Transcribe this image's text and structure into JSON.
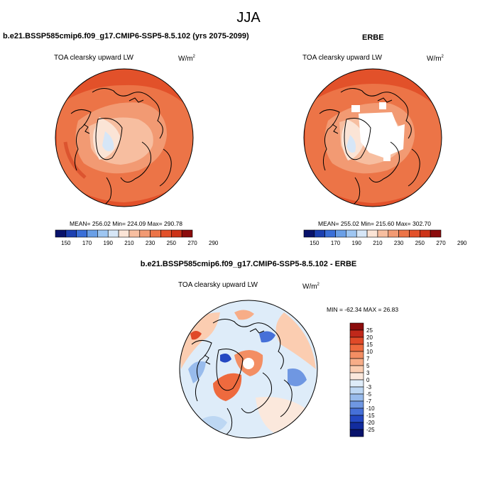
{
  "figure": {
    "title": "JJA"
  },
  "panels": [
    {
      "case_title": "b.e21.BSSP585cmip6.f09_g17.CMIP6-SSP5-8.5.102 (yrs 2075-2099)",
      "variable": "TOA clearsky upward LW",
      "units": "W/m",
      "units_exp": "2",
      "stats": "MEAN= 256.02  Min= 224.09  Max= 290.78"
    },
    {
      "case_title": "ERBE",
      "variable": "TOA clearsky upward LW",
      "units": "W/m",
      "units_exp": "2",
      "stats": "MEAN= 255.02  Min= 215.60  Max= 302.70"
    },
    {
      "case_title": "b.e21.BSSP585cmip6.f09_g17.CMIP6-SSP5-8.5.102 - ERBE",
      "variable": "TOA clearsky upward LW",
      "units": "W/m",
      "units_exp": "2",
      "stats": "MIN = -62.34 MAX =  26.83"
    }
  ],
  "chart_data": [
    {
      "type": "heatmap",
      "projection": "north-polar-stereographic",
      "title": "TOA clearsky upward LW",
      "subtitle": "b.e21.BSSP585cmip6.f09_g17.CMIP6-SSP5-8.5.102 (yrs 2075-2099)",
      "units": "W/m^2",
      "mean": 256.02,
      "min": 224.09,
      "max": 290.78,
      "colorbar": {
        "orientation": "horizontal",
        "levels": [
          150,
          170,
          190,
          210,
          230,
          250,
          270,
          290
        ],
        "colors": [
          "#08126b",
          "#1b3fb0",
          "#3a6fd8",
          "#6a9fe6",
          "#9ec6f2",
          "#d6e6f7",
          "#fbe4d6",
          "#f7bea0",
          "#f29a73",
          "#ec7447",
          "#e2512a",
          "#cc3318",
          "#8b0c0c"
        ]
      }
    },
    {
      "type": "heatmap",
      "projection": "north-polar-stereographic",
      "title": "TOA clearsky upward LW",
      "subtitle": "ERBE",
      "units": "W/m^2",
      "mean": 255.02,
      "min": 215.6,
      "max": 302.7,
      "colorbar": {
        "orientation": "horizontal",
        "levels": [
          150,
          170,
          190,
          210,
          230,
          250,
          270,
          290
        ],
        "colors": [
          "#08126b",
          "#1b3fb0",
          "#3a6fd8",
          "#6a9fe6",
          "#9ec6f2",
          "#d6e6f7",
          "#fbe4d6",
          "#f7bea0",
          "#f29a73",
          "#ec7447",
          "#e2512a",
          "#cc3318",
          "#8b0c0c"
        ]
      }
    },
    {
      "type": "heatmap",
      "projection": "north-polar-stereographic",
      "title": "TOA clearsky upward LW",
      "subtitle": "b.e21.BSSP585cmip6.f09_g17.CMIP6-SSP5-8.5.102 - ERBE",
      "units": "W/m^2",
      "min": -62.34,
      "max": 26.83,
      "colorbar": {
        "orientation": "vertical",
        "levels": [
          25,
          20,
          15,
          10,
          7,
          5,
          3,
          0,
          -3,
          -5,
          -7,
          -10,
          -15,
          -20,
          -25
        ],
        "colors": [
          "#8b0c0c",
          "#c0281a",
          "#e04a28",
          "#ee6a3e",
          "#f38e63",
          "#f7ad88",
          "#fbcdb1",
          "#fbe8dc",
          "#deecf9",
          "#bdd7f3",
          "#98bbec",
          "#6f97e2",
          "#4670d8",
          "#2448c2",
          "#122c9e",
          "#08126b"
        ]
      }
    }
  ]
}
